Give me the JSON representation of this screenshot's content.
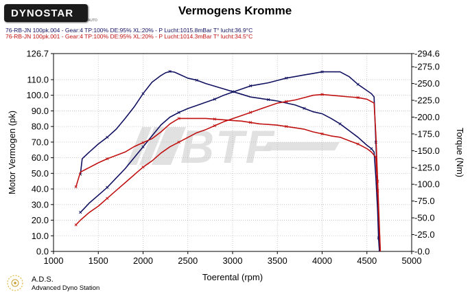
{
  "header": {
    "logo_text": "DYNOSTAR",
    "logo_sub": "AUTO",
    "title": "Vermogens Kromme",
    "runs": [
      {
        "label": "76-RB-JN 100pk.004 - Gear:4  TP:100%  DE:95%  XL:20%    -  P Lucht:1015.8mBar T° lucht:36.9°C",
        "color": "#101060"
      },
      {
        "label": "76-RB-JN 100pk.001 - Gear:4  TP:100%  DE:95%  XL:20%    -  P Lucht:1014.3mBar T° lucht:34.5°C",
        "color": "#c01010"
      }
    ]
  },
  "watermark": {
    "text": "BTF"
  },
  "footer": {
    "name": "A.D.S.",
    "subtitle": "Advanced Dyno Station"
  },
  "chart_data": {
    "type": "line",
    "xlabel": "Toerental (rpm)",
    "ylabel_left": "Motor Vermogen (pk)",
    "ylabel_right": "Torque (Nm)",
    "xlim": [
      1000,
      5000
    ],
    "ylim_left": [
      0,
      126.7
    ],
    "ylim_right": [
      0,
      294.6
    ],
    "x_ticks": [
      "1000",
      "1500",
      "2000",
      "2500",
      "3000",
      "3500",
      "4000",
      "4500",
      "5000"
    ],
    "y_ticks_left": [
      "0.0",
      "10.0",
      "20.0",
      "30.0",
      "40.0",
      "50.0",
      "60.0",
      "70.0",
      "80.0",
      "90.0",
      "100.0",
      "110.0",
      "126.7"
    ],
    "y_ticks_right": [
      "0.0",
      "25.0",
      "50.0",
      "75.0",
      "100.0",
      "125.0",
      "150.0",
      "175.0",
      "200.0",
      "225.0",
      "250.0",
      "275.0",
      "294.6"
    ],
    "grid": true,
    "colors": {
      "run1": "#101060",
      "run2": "#c01010"
    },
    "series": [
      {
        "run": 1,
        "axis": "left",
        "quantity": "power",
        "color": "#101060",
        "x": [
          1300,
          1350,
          1400,
          1500,
          1600,
          1700,
          1800,
          1900,
          2000,
          2100,
          2200,
          2300,
          2400,
          2500,
          2600,
          2700,
          2800,
          2900,
          3000,
          3100,
          3200,
          3300,
          3400,
          3500,
          3600,
          3700,
          3800,
          3900,
          4000,
          4100,
          4200,
          4300,
          4400,
          4500,
          4550,
          4580,
          4600,
          4620,
          4630,
          4640
        ],
        "y": [
          25,
          28,
          31,
          36,
          41,
          47,
          53,
          60,
          67,
          74,
          81,
          86,
          89,
          91.5,
          93.5,
          95.5,
          97.5,
          100,
          102,
          104,
          106,
          107,
          108,
          109.5,
          111,
          112,
          113,
          114,
          115,
          115,
          115,
          112,
          107,
          103,
          101,
          99,
          70,
          40,
          15,
          0
        ]
      },
      {
        "run": 1,
        "axis": "right",
        "quantity": "torque",
        "color": "#101060",
        "x": [
          1300,
          1320,
          1400,
          1500,
          1600,
          1700,
          1800,
          1900,
          2000,
          2100,
          2200,
          2250,
          2300,
          2350,
          2400,
          2500,
          2600,
          2700,
          2800,
          2900,
          3000,
          3100,
          3200,
          3300,
          3400,
          3500,
          3600,
          3700,
          3800,
          3900,
          4000,
          4100,
          4200,
          4300,
          4400,
          4500,
          4550,
          4580,
          4600,
          4620,
          4630,
          4640
        ],
        "y": [
          115,
          138,
          148,
          160,
          170,
          182,
          198,
          215,
          235,
          252,
          262,
          266,
          268,
          267,
          264,
          258,
          255,
          250,
          246,
          242,
          238,
          234,
          230,
          228,
          226,
          224,
          221,
          218,
          213,
          208,
          205,
          198,
          190,
          180,
          170,
          158,
          153,
          148,
          110,
          60,
          20,
          0
        ]
      },
      {
        "run": 2,
        "axis": "left",
        "quantity": "power",
        "color": "#c01010",
        "x": [
          1250,
          1300,
          1400,
          1500,
          1600,
          1700,
          1800,
          1900,
          2000,
          2100,
          2200,
          2300,
          2400,
          2500,
          2600,
          2700,
          2800,
          2900,
          3000,
          3100,
          3200,
          3300,
          3400,
          3500,
          3600,
          3700,
          3800,
          3900,
          4000,
          4100,
          4200,
          4300,
          4400,
          4500,
          4580,
          4600,
          4620,
          4640,
          4650
        ],
        "y": [
          17,
          20,
          25,
          29,
          34,
          39,
          44,
          49,
          54,
          58,
          63,
          67,
          70,
          73,
          76,
          78,
          80.5,
          83,
          85,
          87,
          89,
          91,
          93,
          95,
          96,
          97,
          98.5,
          100,
          100.5,
          100,
          99.5,
          99,
          98.5,
          97.5,
          95,
          75,
          45,
          15,
          0
        ]
      },
      {
        "run": 2,
        "axis": "right",
        "quantity": "torque",
        "color": "#c01010",
        "x": [
          1250,
          1300,
          1400,
          1500,
          1600,
          1700,
          1800,
          1900,
          2000,
          2100,
          2200,
          2300,
          2400,
          2500,
          2600,
          2700,
          2800,
          2900,
          3000,
          3100,
          3200,
          3300,
          3400,
          3500,
          3600,
          3700,
          3800,
          3900,
          4000,
          4100,
          4200,
          4300,
          4400,
          4500,
          4550,
          4600,
          4620,
          4640,
          4650
        ],
        "y": [
          96,
          118,
          125,
          132,
          138,
          143,
          148,
          156,
          162,
          168,
          178,
          190,
          198,
          198,
          198,
          198,
          197,
          196,
          195,
          194,
          192,
          190,
          189,
          188,
          186,
          184,
          182,
          178,
          175,
          172,
          170,
          165,
          160,
          153,
          148,
          140,
          90,
          30,
          0
        ]
      }
    ]
  }
}
